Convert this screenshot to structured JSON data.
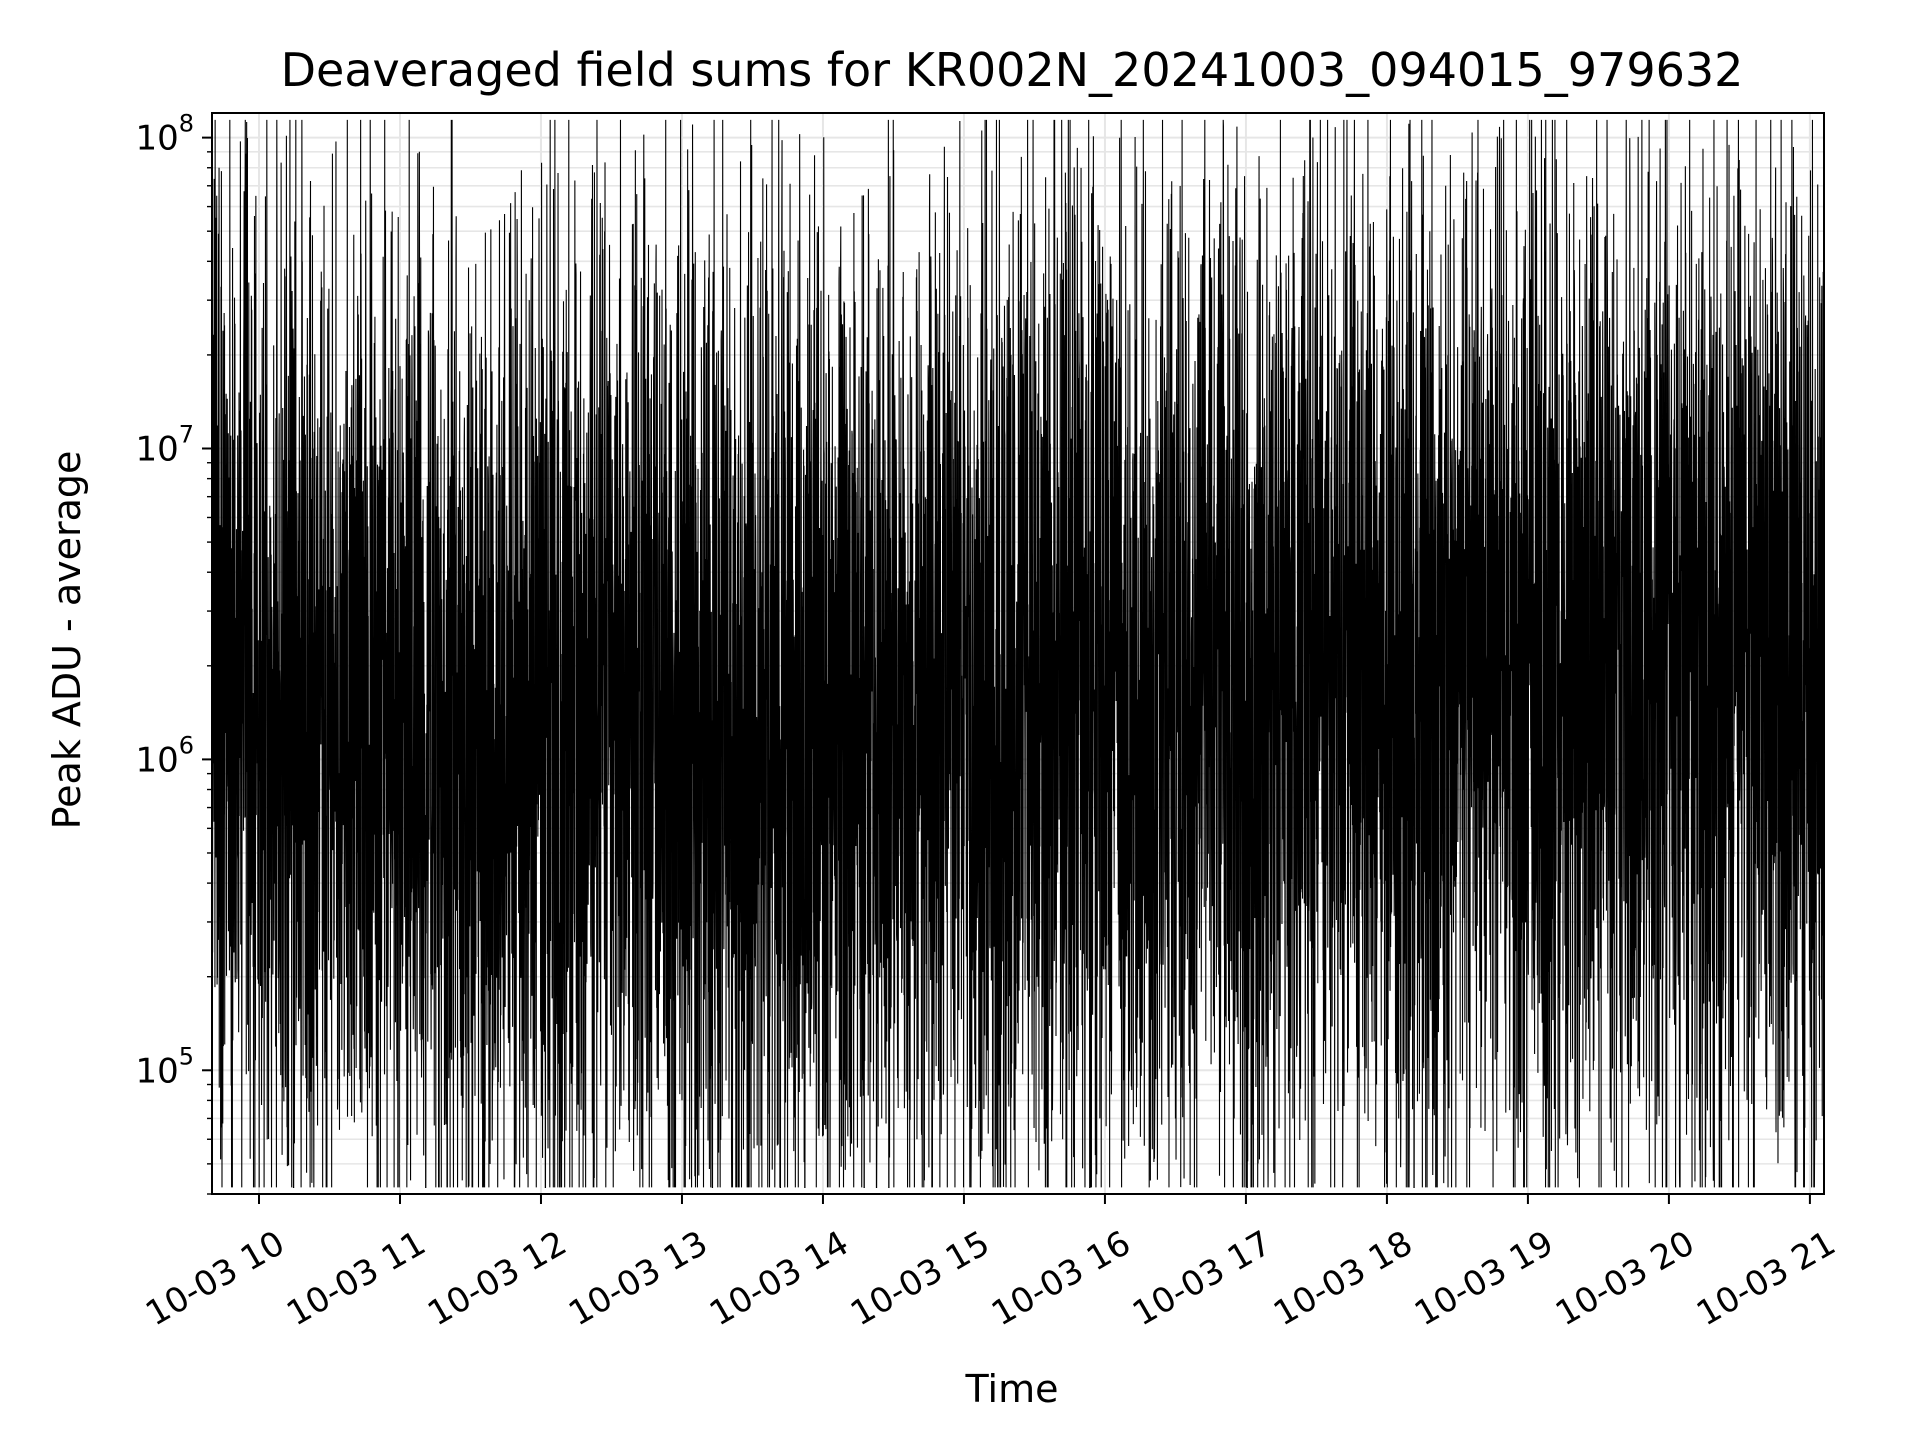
{
  "chart_data": {
    "type": "line",
    "title": "Deaveraged field sums for KR002N_20241003_094015_979632",
    "xlabel": "Time",
    "ylabel": "Peak ADU - average",
    "yscale": "log",
    "grid": true,
    "line_color": "#000000",
    "grid_color": "#e6e6e6",
    "xlim": [
      "2024-10-03 09:40",
      "2024-10-03 21:06"
    ],
    "ylim": [
      40000,
      120000000
    ],
    "x_ticks": [
      {
        "value": "2024-10-03 10:00",
        "label": "10-03 10"
      },
      {
        "value": "2024-10-03 11:00",
        "label": "10-03 11"
      },
      {
        "value": "2024-10-03 12:00",
        "label": "10-03 12"
      },
      {
        "value": "2024-10-03 13:00",
        "label": "10-03 13"
      },
      {
        "value": "2024-10-03 14:00",
        "label": "10-03 14"
      },
      {
        "value": "2024-10-03 15:00",
        "label": "10-03 15"
      },
      {
        "value": "2024-10-03 16:00",
        "label": "10-03 16"
      },
      {
        "value": "2024-10-03 17:00",
        "label": "10-03 17"
      },
      {
        "value": "2024-10-03 18:00",
        "label": "10-03 18"
      },
      {
        "value": "2024-10-03 19:00",
        "label": "10-03 19"
      },
      {
        "value": "2024-10-03 20:00",
        "label": "10-03 20"
      },
      {
        "value": "2024-10-03 21:00",
        "label": "10-03 21"
      }
    ],
    "y_ticks": [
      {
        "value": 100000,
        "base": "10",
        "exp": "5"
      },
      {
        "value": 1000000,
        "base": "10",
        "exp": "6"
      },
      {
        "value": 10000000,
        "base": "10",
        "exp": "7"
      },
      {
        "value": 100000000,
        "base": "10",
        "exp": "8"
      }
    ],
    "series": [
      {
        "values": [
          [
            "2024-10-03 09:40",
            1100000
          ],
          [
            "2024-10-03 09:41",
            4000000
          ],
          [
            "2024-10-03 09:42",
            65000000
          ],
          [
            "2024-10-03 09:43",
            80000000
          ],
          [
            "2024-10-03 09:44",
            78000000
          ],
          [
            "2024-10-03 09:45",
            1200000
          ],
          [
            "2024-10-03 09:46",
            15000000
          ],
          [
            "2024-10-03 09:47",
            280000
          ],
          [
            "2024-10-03 09:48",
            11000000
          ],
          [
            "2024-10-03 09:50",
            280000
          ],
          [
            "2024-10-03 09:52",
            3500000
          ],
          [
            "2024-10-03 09:55",
            8500000
          ],
          [
            "2024-10-03 09:58",
            420000
          ],
          [
            "2024-10-03 10:05",
            6000000
          ],
          [
            "2024-10-03 10:12",
            650000
          ],
          [
            "2024-10-03 10:15",
            21000000
          ],
          [
            "2024-10-03 10:20",
            190000
          ],
          [
            "2024-10-03 10:25",
            12500000
          ],
          [
            "2024-10-03 10:40",
            130000
          ],
          [
            "2024-10-03 10:45",
            13500000
          ],
          [
            "2024-10-03 10:50",
            140000
          ],
          [
            "2024-10-03 10:58",
            15500000
          ],
          [
            "2024-10-03 11:01",
            190000
          ],
          [
            "2024-10-03 11:10",
            105000
          ],
          [
            "2024-10-03 11:35",
            18000000
          ],
          [
            "2024-10-03 11:40",
            100000
          ],
          [
            "2024-10-03 11:55",
            30000000
          ],
          [
            "2024-10-03 12:00",
            150000
          ],
          [
            "2024-10-03 12:08",
            85000
          ],
          [
            "2024-10-03 12:25",
            42000000
          ],
          [
            "2024-10-03 12:30",
            130000
          ],
          [
            "2024-10-03 12:40",
            75000
          ],
          [
            "2024-10-03 12:55",
            25000000
          ],
          [
            "2024-10-03 13:00",
            80000
          ],
          [
            "2024-10-03 13:20",
            70000
          ],
          [
            "2024-10-03 13:40",
            23000000
          ],
          [
            "2024-10-03 13:55",
            25000000
          ],
          [
            "2024-10-03 13:58",
            65000
          ],
          [
            "2024-10-03 14:10",
            80000
          ],
          [
            "2024-10-03 14:25",
            70000
          ],
          [
            "2024-10-03 14:40",
            60000
          ],
          [
            "2024-10-03 14:42",
            62000
          ],
          [
            "2024-10-03 15:05",
            78000
          ],
          [
            "2024-10-03 15:20",
            20000000
          ],
          [
            "2024-10-03 15:28",
            23000000
          ],
          [
            "2024-10-03 15:35",
            65000
          ],
          [
            "2024-10-03 15:42",
            60000
          ],
          [
            "2024-10-03 15:55",
            25000000
          ],
          [
            "2024-10-03 16:05",
            30000000
          ],
          [
            "2024-10-03 16:30",
            70000
          ],
          [
            "2024-10-03 16:40",
            27000000
          ],
          [
            "2024-10-03 16:55",
            70000
          ],
          [
            "2024-10-03 17:20",
            70000
          ],
          [
            "2024-10-03 17:40",
            20000000
          ],
          [
            "2024-10-03 18:00",
            24000000
          ],
          [
            "2024-10-03 18:05",
            70000
          ],
          [
            "2024-10-03 18:20",
            75000
          ],
          [
            "2024-10-03 18:45",
            80000
          ],
          [
            "2024-10-03 18:58",
            29000000
          ],
          [
            "2024-10-03 19:05",
            25000000
          ],
          [
            "2024-10-03 19:10",
            55000
          ],
          [
            "2024-10-03 19:20",
            65000
          ],
          [
            "2024-10-03 19:22",
            47000000
          ],
          [
            "2024-10-03 19:35",
            70000
          ],
          [
            "2024-10-03 19:55",
            20000000
          ],
          [
            "2024-10-03 20:10",
            90000
          ],
          [
            "2024-10-03 20:18",
            20000000
          ],
          [
            "2024-10-03 20:35",
            160000
          ],
          [
            "2024-10-03 20:45",
            15000000
          ],
          [
            "2024-10-03 20:55",
            6000000
          ],
          [
            "2024-10-03 21:00",
            430000
          ],
          [
            "2024-10-03 21:06",
            900000
          ]
        ]
      }
    ]
  }
}
